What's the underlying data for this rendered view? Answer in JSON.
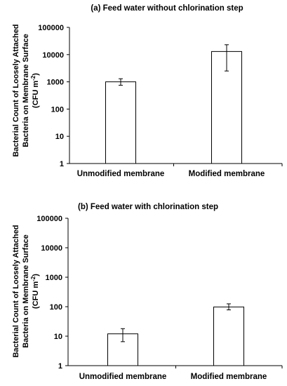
{
  "chart_data": [
    {
      "type": "bar",
      "title": "(a)  Feed water without chlorination step",
      "ylabel_lines": [
        "Bacterial Count of Loosely Attached",
        "Bacteria on Membrane Surface"
      ],
      "yunit_base": "(CFU m",
      "yunit_sup": "-2",
      "yunit_close": ")",
      "yscale": "log",
      "ylim": [
        1,
        100000
      ],
      "yticks": [
        "1",
        "10",
        "100",
        "1000",
        "10000",
        "100000"
      ],
      "categories": [
        "Unmodified membrane",
        "Modified membrane"
      ],
      "values": [
        1000,
        13000
      ],
      "errors_low": [
        750,
        2500
      ],
      "errors_high": [
        1300,
        23000
      ],
      "bar_color": "#ffffff",
      "edge_color": "#000000",
      "grid": false,
      "legend": "none"
    },
    {
      "type": "bar",
      "title": "(b) Feed water with chlorination step",
      "ylabel_lines": [
        "Bacterial Count of Loosely Attached",
        "Bacteria on Membrane Surface"
      ],
      "yunit_base": "(CFU m",
      "yunit_sup": "-2",
      "yunit_close": ")",
      "yscale": "log",
      "ylim": [
        1,
        100000
      ],
      "yticks": [
        "1",
        "10",
        "100",
        "1000",
        "10000",
        "100000"
      ],
      "categories": [
        "Unmodified membrane",
        "Modified membrane"
      ],
      "values": [
        12,
        98
      ],
      "errors_low": [
        6.5,
        78
      ],
      "errors_high": [
        18,
        125
      ],
      "bar_color": "#ffffff",
      "edge_color": "#000000",
      "grid": false,
      "legend": "none"
    }
  ]
}
